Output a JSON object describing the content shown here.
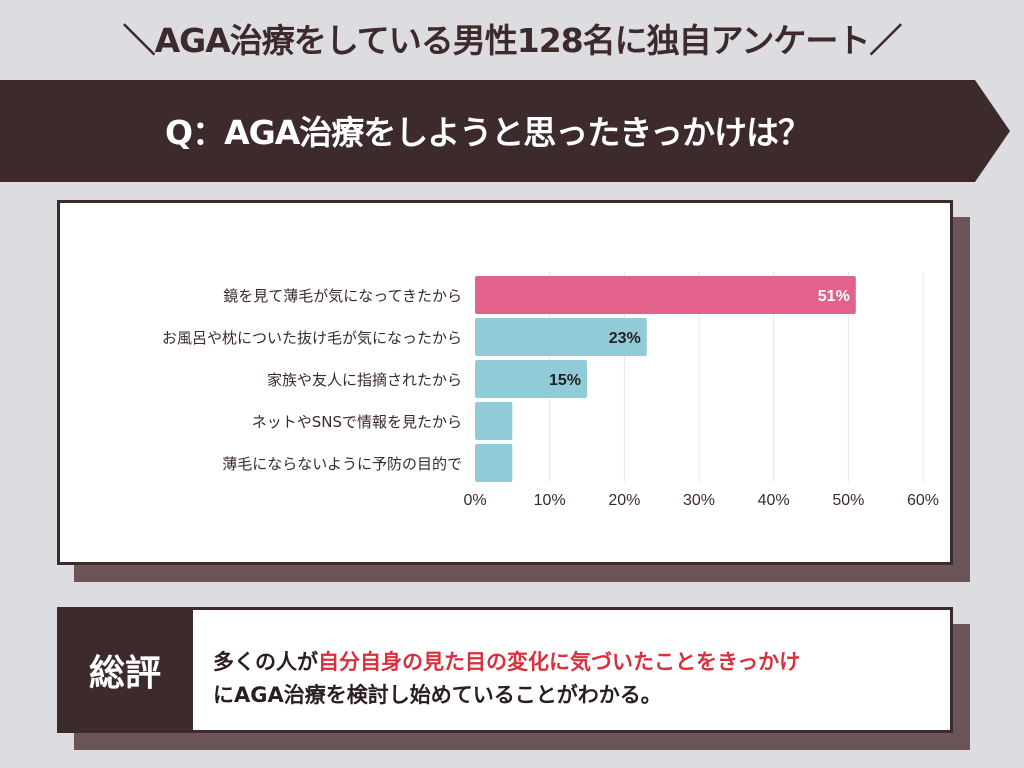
{
  "title": "＼AGA治療をしている男性128名に独自アンケート／",
  "question": "Q：AGA治療をしようと思ったきっかけは？",
  "chart_data": {
    "type": "bar",
    "orientation": "horizontal",
    "categories": [
      "鏡を見て薄毛が気になってきたから",
      "お風呂や枕についた抜け毛が気になったから",
      "家族や友人に指摘されたから",
      "ネットやSNSで情報を見たから",
      "薄毛にならないように予防の目的で"
    ],
    "values": [
      51,
      23,
      15,
      5,
      5
    ],
    "value_labels": [
      "51%",
      "23%",
      "15%",
      "",
      ""
    ],
    "xlim": [
      0,
      60
    ],
    "xticks": [
      "0%",
      "10%",
      "20%",
      "30%",
      "40%",
      "50%",
      "60%"
    ],
    "colors": [
      "#e2628c",
      "#92cbd8",
      "#92cbd8",
      "#92cbd8",
      "#92cbd8"
    ],
    "grid": true
  },
  "summary": {
    "label": "総評",
    "line1_pre": "多くの人が",
    "line1_highlight": "自分自身の見た目の変化に気づいたことをきっかけ",
    "line2": "にAGA治療を検討し始めていることがわかる。"
  }
}
